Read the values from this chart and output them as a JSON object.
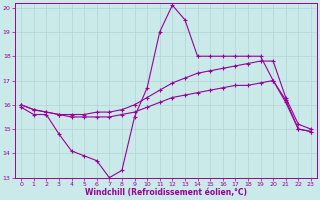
{
  "xlabel": "Windchill (Refroidissement éolien,°C)",
  "background_color": "#caeaea",
  "grid_color": "#b0d4d4",
  "line_color": "#990099",
  "xlim": [
    -0.5,
    23.5
  ],
  "ylim": [
    13,
    20.2
  ],
  "yticks": [
    13,
    14,
    15,
    16,
    17,
    18,
    19,
    20
  ],
  "xticks": [
    0,
    1,
    2,
    3,
    4,
    5,
    6,
    7,
    8,
    9,
    10,
    11,
    12,
    13,
    14,
    15,
    16,
    17,
    18,
    19,
    20,
    21,
    22,
    23
  ],
  "series1_x": [
    0,
    1,
    2,
    3,
    4,
    5,
    6,
    7,
    8,
    9,
    10,
    11,
    12,
    13,
    14,
    15,
    16,
    17,
    18,
    19,
    20,
    21,
    22,
    23
  ],
  "series1_y": [
    15.9,
    15.6,
    15.6,
    14.8,
    14.1,
    13.9,
    13.7,
    13.0,
    13.3,
    15.5,
    16.7,
    19.0,
    20.1,
    19.5,
    18.0,
    18.0,
    18.0,
    18.0,
    18.0,
    18.0,
    17.0,
    16.2,
    15.0,
    14.9
  ],
  "series2_x": [
    0,
    1,
    2,
    3,
    4,
    5,
    6,
    7,
    8,
    9,
    10,
    11,
    12,
    13,
    14,
    15,
    16,
    17,
    18,
    19,
    20,
    21,
    22,
    23
  ],
  "series2_y": [
    16.0,
    15.8,
    15.7,
    15.6,
    15.6,
    15.6,
    15.7,
    15.7,
    15.8,
    16.0,
    16.3,
    16.6,
    16.9,
    17.1,
    17.3,
    17.4,
    17.5,
    17.6,
    17.7,
    17.8,
    17.8,
    16.3,
    15.2,
    15.0
  ],
  "series3_x": [
    0,
    1,
    2,
    3,
    4,
    5,
    6,
    7,
    8,
    9,
    10,
    11,
    12,
    13,
    14,
    15,
    16,
    17,
    18,
    19,
    20,
    21,
    22,
    23
  ],
  "series3_y": [
    16.0,
    15.8,
    15.7,
    15.6,
    15.5,
    15.5,
    15.5,
    15.5,
    15.6,
    15.7,
    15.9,
    16.1,
    16.3,
    16.4,
    16.5,
    16.6,
    16.7,
    16.8,
    16.8,
    16.9,
    17.0,
    16.1,
    15.0,
    14.9
  ]
}
